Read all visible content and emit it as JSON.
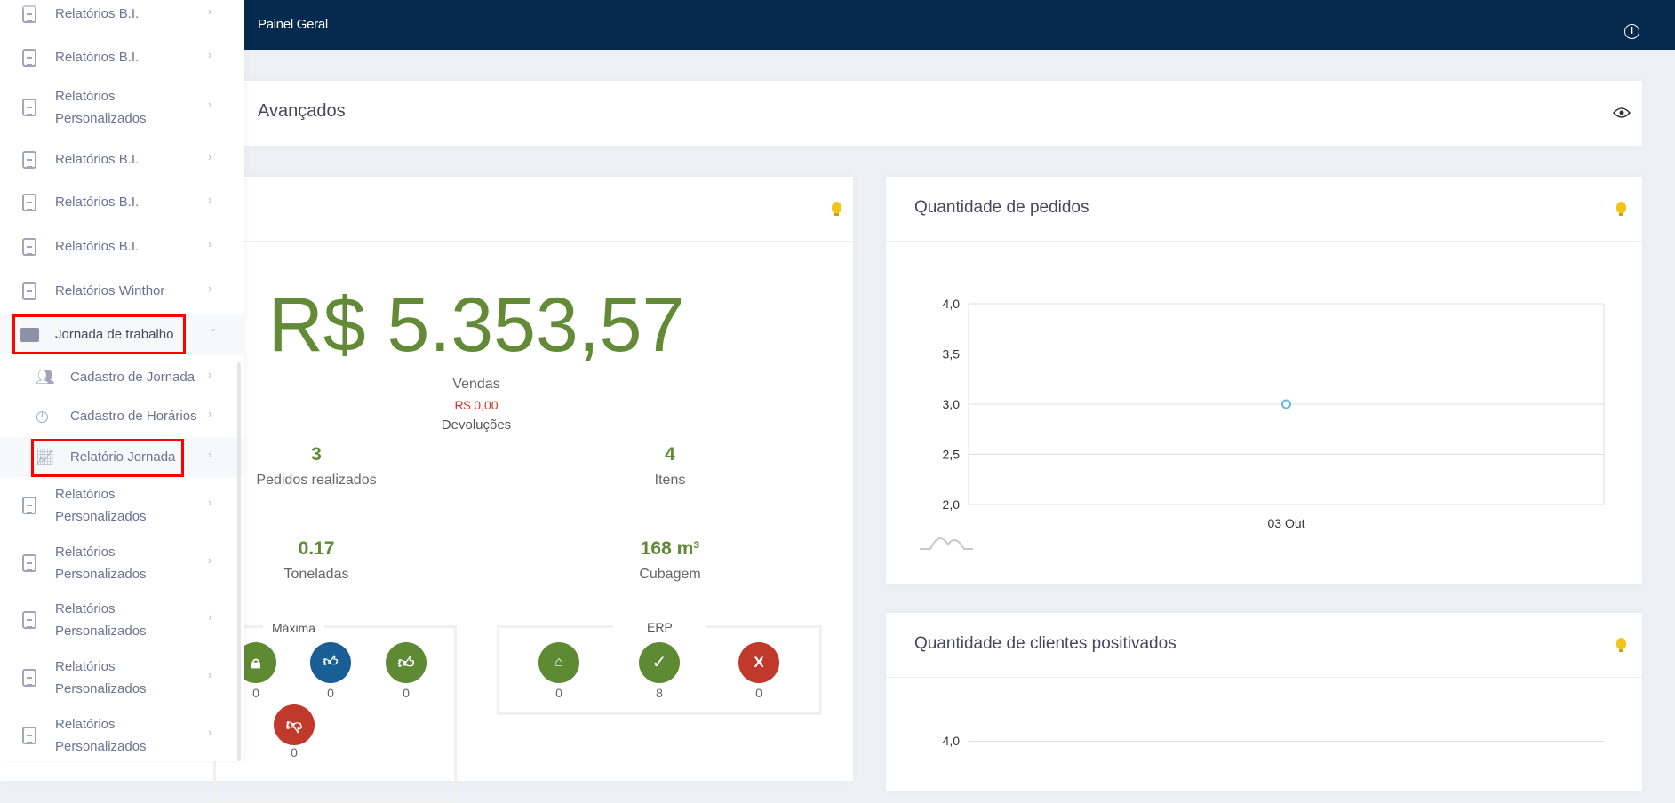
{
  "header": {
    "title": "Painel Geral",
    "info_icon": "info-icon"
  },
  "summary_card": {
    "title": "Avançados",
    "eye_icon": "eye-icon"
  },
  "sales_card": {
    "total": "R$ 5.353,57",
    "total_label": "Vendas",
    "returns": "R$ 0,00",
    "returns_label": "Devoluções",
    "stats": [
      {
        "value": "3",
        "label": "Pedidos realizados"
      },
      {
        "value": "4",
        "label": "Itens"
      },
      {
        "value": "0.17",
        "label": "Toneladas"
      },
      {
        "value": "168 m³",
        "label": "Cubagem"
      }
    ],
    "maxima": {
      "label": "Máxima",
      "items": [
        {
          "icon": "lock-icon",
          "value": "0",
          "color": "#5f8a34"
        },
        {
          "icon": "thumbs-up-down-icon",
          "value": "0",
          "color": "#1a5e96"
        },
        {
          "icon": "thumbs-up-icon",
          "value": "0",
          "color": "#5f8a34"
        },
        {
          "icon": "thumbs-down-icon",
          "value": "0",
          "color": "#c0392b"
        }
      ]
    },
    "erp": {
      "label": "ERP",
      "items": [
        {
          "icon": "warehouse-icon",
          "value": "0",
          "color": "#5f8a34"
        },
        {
          "icon": "check-icon",
          "value": "8",
          "color": "#5f8a34"
        },
        {
          "icon": "x-icon",
          "value": "0",
          "color": "#c0392b",
          "glyph": "X"
        }
      ]
    }
  },
  "orders_card": {
    "title": "Quantidade de pedidos"
  },
  "clients_card": {
    "title": "Quantidade de clientes positivados",
    "first_tick": "4,0"
  },
  "chart_data": {
    "type": "line",
    "categories": [
      "03 Out"
    ],
    "values": [
      3
    ],
    "ylim": [
      2,
      4
    ],
    "yticks": [
      "4,0",
      "3,5",
      "3,0",
      "2,5",
      "2,0"
    ],
    "grid": true,
    "point_color": "#67b7dc"
  },
  "sidebar": {
    "items": [
      {
        "label": "Relatórios B.I."
      },
      {
        "label": "Relatórios B.I."
      },
      {
        "label": "Relatórios Personalizados"
      },
      {
        "label": "Relatórios B.I."
      },
      {
        "label": "Relatórios B.I."
      },
      {
        "label": "Relatórios B.I."
      },
      {
        "label": "Relatórios Winthor"
      },
      {
        "label": "Jornada de trabalho"
      },
      {
        "label": "Cadastro de Jornada"
      },
      {
        "label": "Cadastro de Horários"
      },
      {
        "label": "Relatório Jornada"
      },
      {
        "label": "Relatórios Personalizados"
      },
      {
        "label": "Relatórios Personalizados"
      },
      {
        "label": "Relatórios Personalizados"
      },
      {
        "label": "Relatórios Personalizados"
      },
      {
        "label": "Relatórios Personalizados"
      }
    ]
  }
}
